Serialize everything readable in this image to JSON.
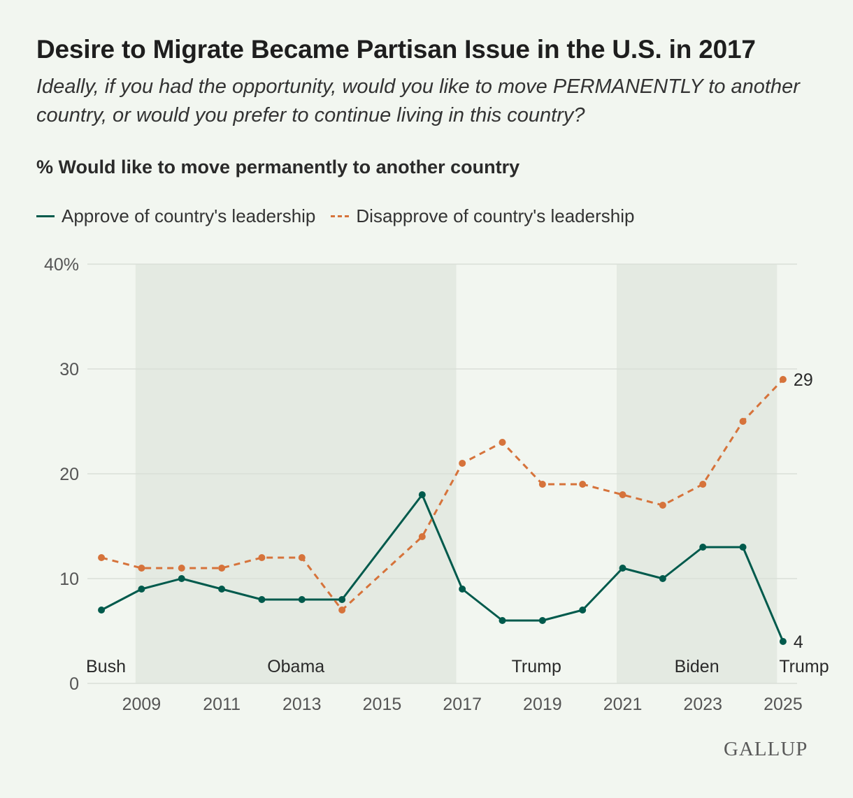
{
  "header": {
    "title": "Desire to Migrate Became Partisan Issue in the U.S. in 2017",
    "subtitle": "Ideally, if you had the opportunity, would you like to move PERMANENTLY to another country, or would you prefer to continue living in this country?",
    "ylabel": "% Would like to move permanently to another country"
  },
  "brand": {
    "logo_text": "GALLUP"
  },
  "colors": {
    "approve": "#005a4c",
    "disapprove": "#d6733b",
    "band": "#e4eae2",
    "grid": "#d9dfd8",
    "axis_text": "#555555"
  },
  "chart_data": {
    "type": "line",
    "x": [
      2008,
      2009,
      2010,
      2011,
      2012,
      2013,
      2014,
      2016,
      2017,
      2018,
      2019,
      2020,
      2021,
      2022,
      2023,
      2024,
      2025
    ],
    "series": [
      {
        "name": "Approve of country's leadership",
        "style": "solid",
        "values": [
          7,
          9,
          10,
          9,
          8,
          8,
          8,
          18,
          9,
          6,
          6,
          7,
          11,
          10,
          13,
          13,
          4
        ]
      },
      {
        "name": "Disapprove of country's leadership",
        "style": "dashed",
        "values": [
          12,
          11,
          11,
          11,
          12,
          12,
          7,
          14,
          21,
          23,
          19,
          19,
          18,
          17,
          19,
          25,
          29
        ]
      }
    ],
    "xticks": [
      2009,
      2011,
      2013,
      2015,
      2017,
      2019,
      2021,
      2023,
      2025
    ],
    "yticks": [
      0,
      10,
      20,
      30,
      40
    ],
    "ytick_labels": [
      "0",
      "10",
      "20",
      "30",
      "40%"
    ],
    "ylim": [
      0,
      40
    ],
    "xlim": [
      2007.65,
      2025.35
    ],
    "grid": true,
    "legend": "top-left",
    "end_labels": [
      "4",
      "29"
    ],
    "bands": [
      {
        "label": "Bush",
        "start": 2007.65,
        "end": 2008.85,
        "shaded": false
      },
      {
        "label": "Obama",
        "start": 2008.85,
        "end": 2016.85,
        "shaded": true
      },
      {
        "label": "Trump",
        "start": 2016.85,
        "end": 2020.85,
        "shaded": false
      },
      {
        "label": "Biden",
        "start": 2020.85,
        "end": 2024.85,
        "shaded": true
      },
      {
        "label": "Trump",
        "start": 2024.85,
        "end": 2025.35,
        "shaded": false
      }
    ]
  }
}
